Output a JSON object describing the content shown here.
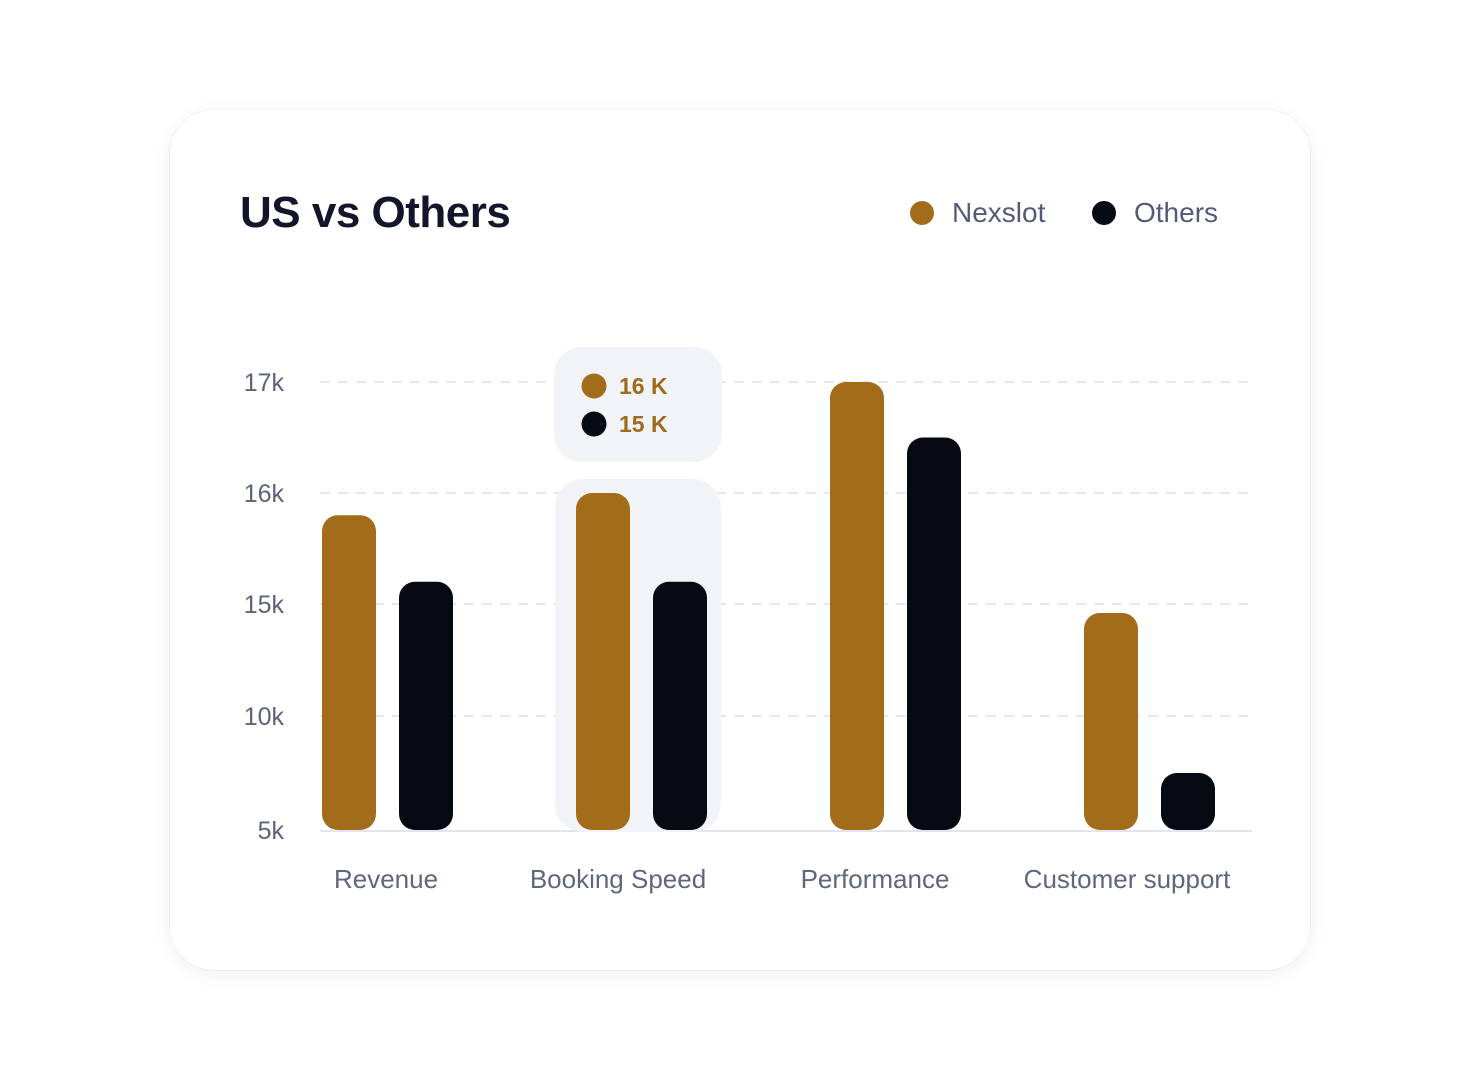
{
  "colors": {
    "nexslot": "#a36c1a",
    "others": "#050a13"
  },
  "chart_data": {
    "type": "bar",
    "title": "US vs Others",
    "categories": [
      "Revenue",
      "Booking Speed",
      "Performance",
      "Customer support"
    ],
    "y_ticks": [
      "5k",
      "10k",
      "15k",
      "16k",
      "17k"
    ],
    "series": [
      {
        "name": "Nexslot",
        "values": [
          15.8,
          16,
          17,
          14.6
        ]
      },
      {
        "name": "Others",
        "values": [
          15.2,
          15.2,
          16.5,
          7.5
        ]
      }
    ],
    "legend": "top-right",
    "grid": true,
    "tooltip": {
      "category": "Booking Speed",
      "lines": [
        "16 K",
        "15 K"
      ]
    }
  }
}
